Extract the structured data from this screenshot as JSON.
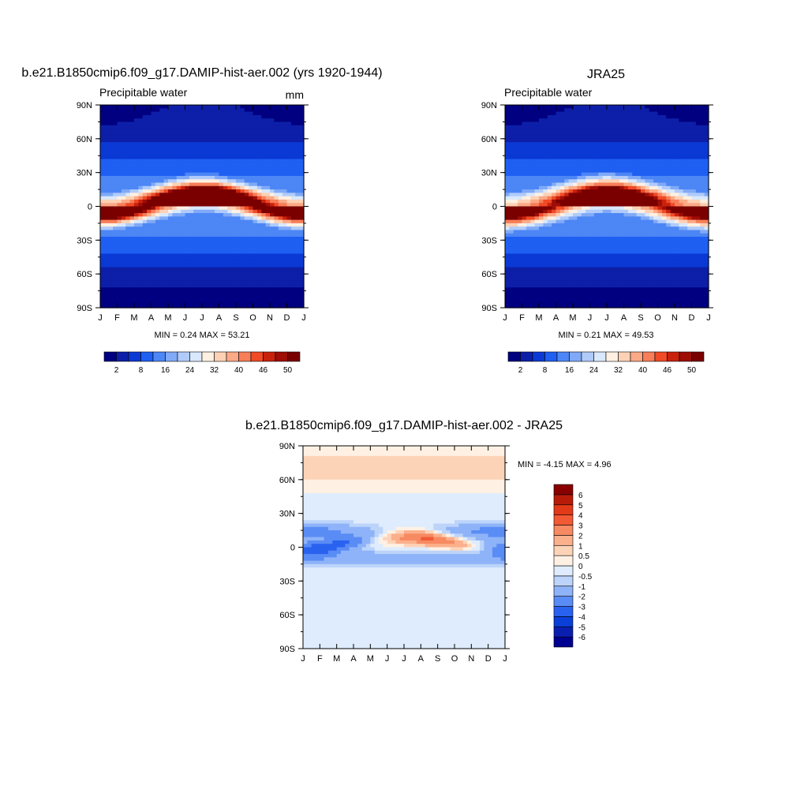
{
  "chart_data": [
    {
      "type": "heatmap",
      "title": "b.e21.B1850cmip6.f09_g17.DAMIP-hist-aer.002 (yrs 1920-1944)",
      "subtitle": "Precipitable water",
      "units": "mm",
      "x_labels": [
        "J",
        "F",
        "M",
        "A",
        "M",
        "J",
        "J",
        "A",
        "S",
        "O",
        "N",
        "D",
        "J"
      ],
      "y_labels": [
        "90N",
        "60N",
        "30N",
        "0",
        "30S",
        "60S",
        "90S"
      ],
      "ylim": [
        -90,
        90
      ],
      "stats": {
        "min": 0.24,
        "max": 53.21
      },
      "stats_text": "MIN =   0.24 MAX =  53.21",
      "colorbar": {
        "orientation": "horizontal",
        "colors": [
          "#000080",
          "#0d1fa8",
          "#0a39d4",
          "#1f5ff2",
          "#4d86f5",
          "#80aaf7",
          "#b0cbfa",
          "#d9e8fc",
          "#fef0e2",
          "#fdd1b5",
          "#fba986",
          "#f77e58",
          "#f04a26",
          "#c9220c",
          "#9e0d06",
          "#7a0000"
        ],
        "labels": [
          "2",
          "8",
          "16",
          "24",
          "32",
          "40",
          "46",
          "50"
        ]
      }
    },
    {
      "type": "heatmap",
      "title": "JRA25",
      "subtitle": "Precipitable water",
      "x_labels": [
        "J",
        "F",
        "M",
        "A",
        "M",
        "J",
        "J",
        "A",
        "S",
        "O",
        "N",
        "D",
        "J"
      ],
      "y_labels": [
        "90N",
        "60N",
        "30N",
        "0",
        "30S",
        "60S",
        "90S"
      ],
      "ylim": [
        -90,
        90
      ],
      "stats": {
        "min": 0.21,
        "max": 49.53
      },
      "stats_text": "MIN =   0.21 MAX =  49.53",
      "colorbar": {
        "orientation": "horizontal",
        "colors": [
          "#000080",
          "#0d1fa8",
          "#0a39d4",
          "#1f5ff2",
          "#4d86f5",
          "#80aaf7",
          "#b0cbfa",
          "#d9e8fc",
          "#fef0e2",
          "#fdd1b5",
          "#fba986",
          "#f77e58",
          "#f04a26",
          "#c9220c",
          "#9e0d06",
          "#7a0000"
        ],
        "labels": [
          "2",
          "8",
          "16",
          "24",
          "32",
          "40",
          "46",
          "50"
        ]
      }
    },
    {
      "type": "heatmap",
      "title": "b.e21.B1850cmip6.f09_g17.DAMIP-hist-aer.002 - JRA25",
      "x_labels": [
        "J",
        "F",
        "M",
        "A",
        "M",
        "J",
        "J",
        "A",
        "S",
        "O",
        "N",
        "D",
        "J"
      ],
      "y_labels": [
        "90N",
        "60N",
        "30N",
        "0",
        "30S",
        "60S",
        "90S"
      ],
      "ylim": [
        -90,
        90
      ],
      "stats": {
        "min": -4.15,
        "max": 4.96
      },
      "stats_text": "MIN =  -4.15 MAX =   4.96",
      "colorbar": {
        "orientation": "vertical",
        "colors": [
          "#000090",
          "#0a1fb0",
          "#0a3fd8",
          "#2a62f0",
          "#5a8cf5",
          "#8eb3f8",
          "#bcd4fa",
          "#deecfd",
          "#fef1e4",
          "#fdd3b8",
          "#fbb08c",
          "#f78a62",
          "#f25a35",
          "#e23a18",
          "#b81c08",
          "#8a0000"
        ],
        "labels": [
          "6",
          "5",
          "4",
          "3",
          "2",
          "1",
          "0.5",
          "0",
          "-0.5",
          "-1",
          "-2",
          "-3",
          "-4",
          "-5",
          "-6"
        ]
      }
    }
  ]
}
